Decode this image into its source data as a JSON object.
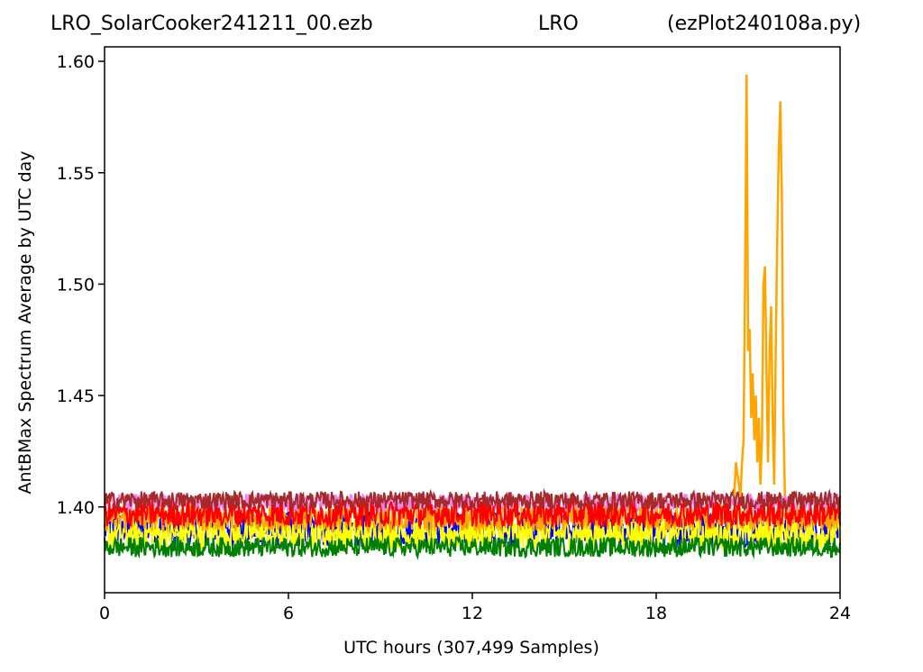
{
  "chart_data": {
    "type": "line",
    "title_left": "LRO_SolarCooker241211_00.ezb",
    "title_center": "LRO",
    "title_right": "(ezPlot240108a.py)",
    "xlabel": "UTC hours  (307,499 Samples)",
    "ylabel": "AntBMax Spectrum Average by UTC day",
    "xlim": [
      0,
      24
    ],
    "ylim": [
      1.3615,
      1.6065
    ],
    "x_ticks": [
      "0",
      "6",
      "12",
      "18",
      "24"
    ],
    "y_ticks": [
      "1.40",
      "1.45",
      "1.50",
      "1.55",
      "1.60"
    ],
    "grid": false,
    "legend": "none",
    "series": [
      {
        "color": "#0000ff",
        "level": 1.39,
        "noise": 0.016,
        "x_range": [
          0,
          24
        ]
      },
      {
        "color": "#ffff00",
        "level": 1.388,
        "noise": 0.014,
        "x_range": [
          0,
          24
        ]
      },
      {
        "color": "#ffa500",
        "level": 1.395,
        "noise": 0.012,
        "x_range": [
          0,
          24
        ]
      },
      {
        "color": "#ee82ee",
        "level": 1.402,
        "noise": 0.008,
        "x_range": [
          0,
          24
        ]
      },
      {
        "color": "#ff0000",
        "level": 1.397,
        "noise": 0.012,
        "x_range": [
          0,
          24
        ]
      },
      {
        "color": "#a52a2a",
        "level": 1.403,
        "noise": 0.008,
        "x_range": [
          0,
          24
        ]
      },
      {
        "color": "#008000",
        "level": 1.382,
        "noise": 0.009,
        "x_range": [
          0,
          24
        ]
      }
    ],
    "spike_series": {
      "color": "#ffa500",
      "points": [
        [
          20.55,
          1.405
        ],
        [
          20.6,
          1.42
        ],
        [
          20.65,
          1.415
        ],
        [
          20.7,
          1.41
        ],
        [
          20.75,
          1.405
        ],
        [
          20.8,
          1.42
        ],
        [
          20.85,
          1.43
        ],
        [
          20.9,
          1.5
        ],
        [
          20.95,
          1.594
        ],
        [
          21.0,
          1.47
        ],
        [
          21.05,
          1.48
        ],
        [
          21.1,
          1.44
        ],
        [
          21.15,
          1.46
        ],
        [
          21.2,
          1.43
        ],
        [
          21.25,
          1.45
        ],
        [
          21.3,
          1.42
        ],
        [
          21.35,
          1.44
        ],
        [
          21.4,
          1.41
        ],
        [
          21.45,
          1.43
        ],
        [
          21.5,
          1.5
        ],
        [
          21.55,
          1.508
        ],
        [
          21.6,
          1.46
        ],
        [
          21.65,
          1.42
        ],
        [
          21.7,
          1.47
        ],
        [
          21.75,
          1.49
        ],
        [
          21.8,
          1.44
        ],
        [
          21.85,
          1.41
        ],
        [
          21.9,
          1.47
        ],
        [
          21.95,
          1.52
        ],
        [
          22.0,
          1.56
        ],
        [
          22.05,
          1.582
        ],
        [
          22.1,
          1.54
        ],
        [
          22.15,
          1.44
        ],
        [
          22.2,
          1.405
        ]
      ]
    }
  }
}
